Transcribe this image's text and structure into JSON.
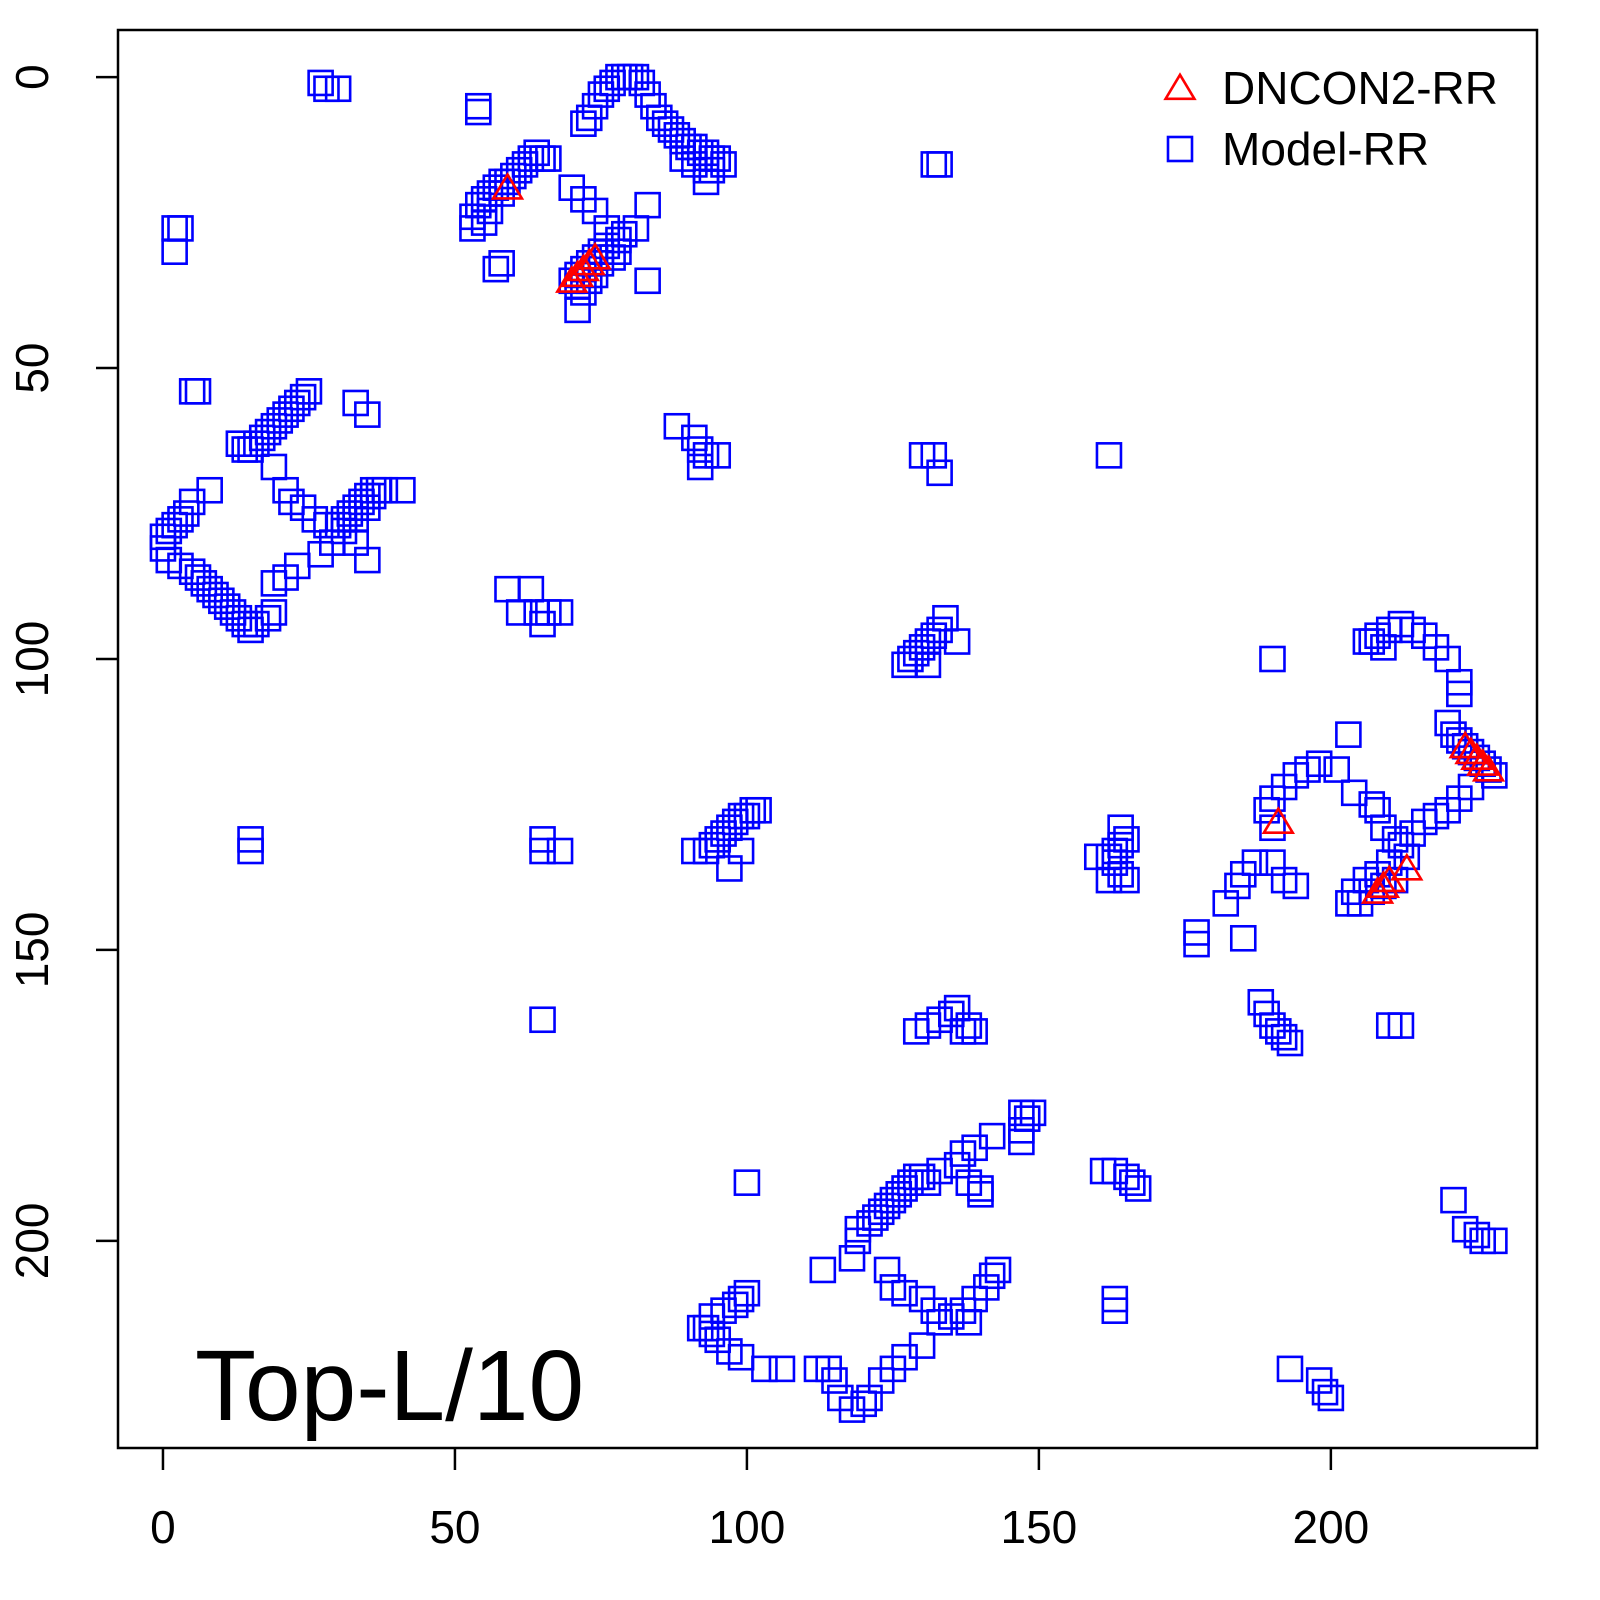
{
  "chart_data": {
    "type": "scatter",
    "annotation": "Top-L/10",
    "xlim": [
      -7.7,
      235.3
    ],
    "ylim": [
      -8.1,
      235.6
    ],
    "y_reversed": true,
    "xticks": [
      0,
      50,
      100,
      150,
      200
    ],
    "yticks": [
      0,
      50,
      100,
      150,
      200
    ],
    "grid": false,
    "legend": "top-right",
    "series": [
      {
        "name": "DNCON2-RR",
        "color": "#ff0000",
        "marker": "triangle",
        "x": [
          59,
          70,
          71,
          72,
          73,
          74,
          191,
          208,
          209,
          210,
          213,
          223,
          224,
          225,
          226,
          227
        ],
        "values": [
          19,
          35,
          34,
          33,
          32,
          31,
          128,
          140,
          139,
          138,
          136,
          115,
          116,
          117,
          118,
          119
        ]
      },
      {
        "name": "Model-RR",
        "color": "#0000ff",
        "marker": "square",
        "x": [
          53,
          54,
          55,
          56,
          57,
          58,
          59,
          60,
          61,
          62,
          63,
          64,
          65,
          66,
          58,
          55,
          56,
          53,
          70,
          72,
          74,
          76,
          78,
          76,
          75,
          74,
          73,
          72,
          71,
          70,
          71,
          71,
          72,
          73,
          74,
          75,
          77,
          78,
          79,
          72,
          73,
          74,
          75,
          76,
          77,
          78,
          79,
          80,
          81,
          82,
          83,
          84,
          85,
          86,
          87,
          88,
          89,
          90,
          91,
          92,
          93,
          94,
          95,
          96,
          89,
          91,
          93,
          94,
          93,
          83,
          81,
          83,
          58,
          57,
          54,
          54,
          27,
          28,
          30,
          2,
          3,
          2,
          132,
          133,
          6,
          5,
          25,
          24,
          23,
          22,
          21,
          20,
          19,
          18,
          17,
          16,
          15,
          14,
          13,
          33,
          35,
          19,
          21,
          22,
          24,
          26,
          28,
          30,
          31,
          32,
          33,
          34,
          35,
          36,
          37,
          38,
          41,
          36,
          35,
          33,
          31,
          29,
          27,
          33,
          35,
          8,
          5,
          4,
          3,
          2,
          1,
          0,
          0,
          1,
          3,
          5,
          6,
          7,
          8,
          9,
          10,
          11,
          12,
          13,
          14,
          15,
          16,
          18,
          19,
          21,
          23,
          19,
          88,
          91,
          92,
          93,
          95,
          92,
          59,
          63,
          61,
          64,
          66,
          68,
          65,
          130,
          132,
          133,
          162,
          127,
          128,
          129,
          130,
          131,
          132,
          133,
          134,
          131,
          136,
          190,
          15,
          15,
          65,
          65,
          68,
          91,
          93,
          94,
          95,
          96,
          97,
          98,
          99,
          100,
          101,
          102,
          97,
          99,
          162,
          163,
          164,
          165,
          164,
          163,
          164,
          165,
          162,
          160,
          206,
          208,
          210,
          212,
          214,
          216,
          218,
          220,
          222,
          222,
          220,
          221,
          222,
          223,
          224,
          225,
          226,
          227,
          228,
          224,
          222,
          220,
          218,
          216,
          214,
          212,
          210,
          208,
          206,
          204,
          203,
          205,
          207,
          209,
          211,
          213,
          211,
          209,
          208,
          207,
          204,
          201,
          198,
          196,
          194,
          192,
          190,
          189,
          190,
          203,
          190,
          192,
          194,
          187,
          185,
          184,
          182,
          177,
          177,
          185,
          188,
          189,
          190,
          191,
          192,
          193,
          210,
          212,
          207,
          209,
          129,
          131,
          133,
          135,
          136,
          138,
          139,
          137,
          65,
          100,
          119,
          121,
          122,
          123,
          124,
          125,
          126,
          127,
          128,
          129,
          130,
          131,
          133,
          136,
          137,
          139,
          142,
          147,
          148,
          149,
          147,
          147,
          138,
          140,
          140,
          119,
          118,
          113,
          124,
          125,
          127,
          130,
          132,
          133,
          135,
          137,
          139,
          141,
          142,
          143,
          138,
          130,
          127,
          125,
          123,
          121,
          120,
          118,
          116,
          115,
          114,
          112,
          106,
          103,
          99,
          97,
          95,
          94,
          93,
          92,
          94,
          96,
          98,
          99,
          100,
          161,
          163,
          165,
          166,
          167,
          163,
          163,
          193,
          198,
          199,
          200,
          221,
          223,
          225,
          226,
          228
        ],
        "values": [
          24,
          22,
          21,
          20,
          19,
          18,
          18,
          17,
          16,
          15,
          14,
          13,
          14,
          14,
          20,
          25,
          23,
          26,
          19,
          21,
          23,
          26,
          28,
          29,
          30,
          31,
          32,
          33,
          34,
          35,
          36,
          40,
          37,
          35,
          34,
          32,
          31,
          30,
          27,
          8,
          7,
          5,
          3,
          2,
          1,
          0,
          0,
          0,
          0,
          1,
          3,
          5,
          7,
          8,
          9,
          10,
          11,
          12,
          12,
          13,
          13,
          14,
          14,
          15,
          14,
          15,
          16,
          16,
          18,
          22,
          26,
          35,
          32,
          33,
          5,
          6,
          1,
          2,
          2,
          26,
          26,
          30,
          15,
          15,
          54,
          54,
          54,
          55,
          56,
          57,
          58,
          59,
          60,
          61,
          62,
          63,
          64,
          64,
          63,
          56,
          58,
          67,
          71,
          73,
          74,
          76,
          77,
          77,
          76,
          75,
          74,
          73,
          72,
          71,
          71,
          71,
          71,
          72,
          74,
          76,
          78,
          80,
          82,
          80,
          83,
          71,
          73,
          75,
          76,
          77,
          78,
          79,
          81,
          83,
          84,
          85,
          86,
          87,
          88,
          89,
          90,
          91,
          92,
          93,
          94,
          95,
          94,
          93,
          87,
          86,
          84,
          92,
          60,
          62,
          64,
          65,
          65,
          67,
          88,
          88,
          92,
          92,
          92,
          92,
          94,
          65,
          65,
          68,
          65,
          101,
          100,
          99,
          98,
          97,
          96,
          95,
          93,
          101,
          97,
          100,
          131,
          133,
          131,
          133,
          133,
          133,
          133,
          132,
          131,
          130,
          129,
          128,
          127,
          127,
          126,
          126,
          136,
          133,
          134,
          133,
          132,
          131,
          129,
          135,
          137,
          138,
          138,
          134,
          97,
          96,
          95,
          94,
          95,
          96,
          98,
          100,
          104,
          106,
          111,
          113,
          114,
          115,
          116,
          117,
          118,
          119,
          120,
          122,
          124,
          126,
          127,
          128,
          130,
          132,
          135,
          137,
          138,
          140,
          142,
          142,
          140,
          139,
          138,
          134,
          131,
          129,
          126,
          125,
          123,
          119,
          118,
          119,
          120,
          122,
          124,
          126,
          129,
          113,
          135,
          138,
          139,
          135,
          137,
          139,
          142,
          147,
          149,
          148,
          159,
          161,
          163,
          164,
          165,
          166,
          163,
          163,
          97,
          98,
          164,
          163,
          162,
          161,
          160,
          163,
          164,
          164,
          162,
          190,
          198,
          197,
          196,
          195,
          194,
          193,
          192,
          191,
          190,
          189,
          189,
          190,
          188,
          187,
          185,
          184,
          182,
          178,
          179,
          178,
          181,
          183,
          190,
          191,
          192,
          200,
          203,
          205,
          205,
          208,
          209,
          210,
          212,
          214,
          213,
          212,
          210,
          208,
          206,
          205,
          214,
          218,
          220,
          222,
          224,
          227,
          228,
          229,
          227,
          224,
          222,
          222,
          222,
          222,
          220,
          219,
          217,
          216,
          215,
          215,
          213,
          212,
          211,
          210,
          209,
          188,
          188,
          189,
          190,
          191,
          210,
          212,
          222,
          224,
          226,
          227,
          193,
          198,
          199,
          200,
          200
        ]
      }
    ]
  }
}
